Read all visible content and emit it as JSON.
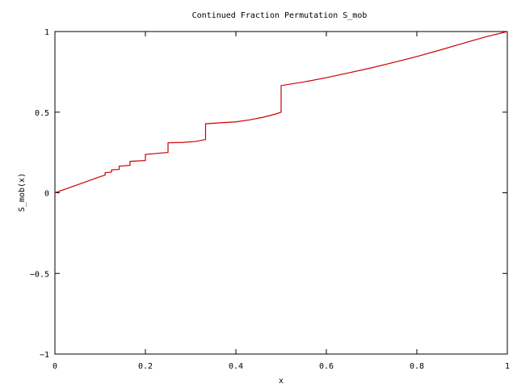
{
  "chart_data": {
    "type": "line",
    "title": "Continued Fraction Permutation S_mob",
    "xlabel": "x",
    "ylabel": "S_mob(x)",
    "xlim": [
      0,
      1
    ],
    "ylim": [
      -1,
      1
    ],
    "grid": false,
    "legend": "none",
    "x_ticks": [
      "0",
      "0.2",
      "0.4",
      "0.6",
      "0.8",
      "1"
    ],
    "y_ticks": [
      "-1",
      "-0.5",
      "0",
      "0.5",
      "1"
    ],
    "series": [
      {
        "color": "#cc0000",
        "x": [
          0,
          0.02,
          0.04,
          0.06,
          0.08,
          0.1,
          0.111,
          0.111,
          0.125,
          0.125,
          0.142,
          0.142,
          0.166,
          0.166,
          0.2,
          0.2,
          0.25,
          0.25,
          0.28,
          0.31,
          0.333,
          0.333,
          0.37,
          0.4,
          0.43,
          0.46,
          0.49,
          0.5,
          0.5,
          0.55,
          0.6,
          0.65,
          0.7,
          0.75,
          0.8,
          0.85,
          0.9,
          0.95,
          1.0
        ],
        "y": [
          0,
          0.02,
          0.04,
          0.06,
          0.08,
          0.1,
          0.11,
          0.125,
          0.128,
          0.142,
          0.145,
          0.165,
          0.17,
          0.195,
          0.2,
          0.238,
          0.25,
          0.31,
          0.312,
          0.318,
          0.33,
          0.428,
          0.435,
          0.44,
          0.452,
          0.468,
          0.49,
          0.5,
          0.665,
          0.687,
          0.714,
          0.744,
          0.775,
          0.809,
          0.845,
          0.884,
          0.925,
          0.965,
          1.0
        ]
      }
    ]
  }
}
